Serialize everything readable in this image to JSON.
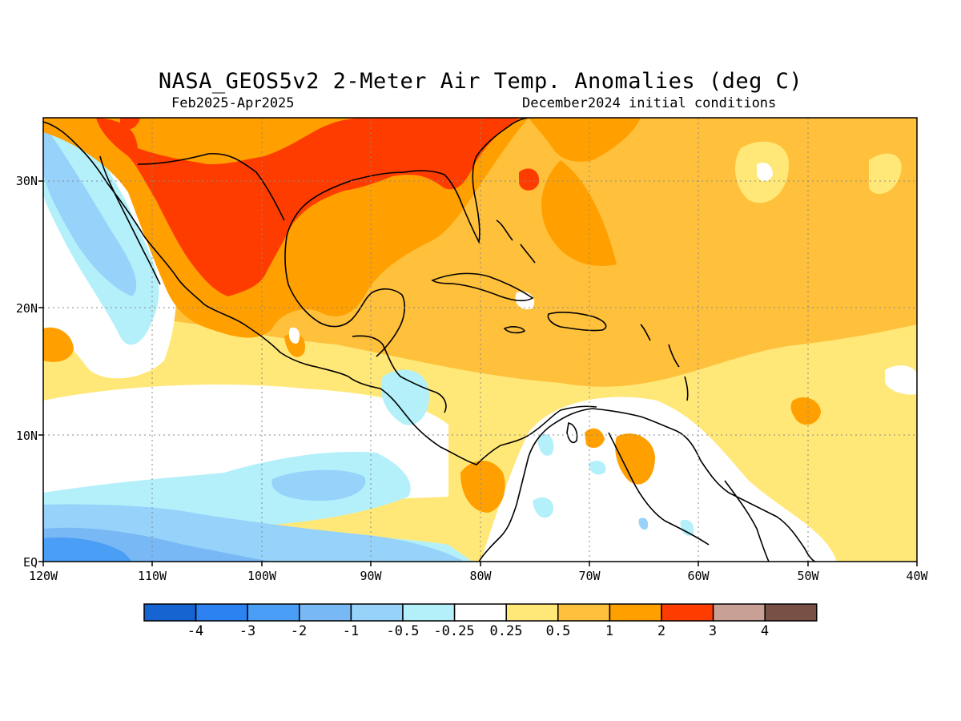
{
  "title": "NASA_GEOS5v2 2-Meter Air Temp. Anomalies (deg C)",
  "period": "Feb2025-Apr2025",
  "initial_conditions": "December2024 initial conditions",
  "lat_labels": [
    "30N",
    "20N",
    "10N",
    "EQ"
  ],
  "lon_labels": [
    "120W",
    "110W",
    "100W",
    "90W",
    "80W",
    "70W",
    "60W",
    "50W",
    "40W"
  ],
  "colorbar": {
    "labels": [
      "-4",
      "-3",
      "-2",
      "-1",
      "-0.5",
      "-0.25",
      "0.25",
      "0.5",
      "1",
      "2",
      "3",
      "4"
    ],
    "colors": [
      "#1664d2",
      "#2b82f0",
      "#4a9ef5",
      "#78b8f5",
      "#96d2fa",
      "#b4f0fa",
      "#ffffff",
      "#ffe878",
      "#ffc03c",
      "#ffa000",
      "#ff3c00",
      "#c8a096",
      "#785046"
    ]
  },
  "colors": {
    "pale_yellow": "#ffe878",
    "light_orange": "#ffc03c",
    "orange": "#ffa000",
    "red": "#ff3c00",
    "cyan": "#b4f0fa",
    "light_blue": "#96d2fa",
    "mid_blue": "#78b8f5",
    "blue": "#4a9ef5"
  }
}
